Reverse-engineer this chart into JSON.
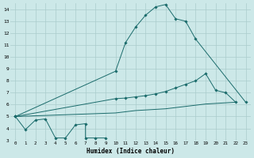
{
  "bg_color": "#cce8e8",
  "grid_color": "#aacccc",
  "line_color": "#1a6b6b",
  "xlabel": "Humidex (Indice chaleur)",
  "xlim": [
    -0.5,
    23.5
  ],
  "ylim": [
    3,
    14.5
  ],
  "yticks": [
    3,
    4,
    5,
    6,
    7,
    8,
    9,
    10,
    11,
    12,
    13,
    14
  ],
  "xticks": [
    0,
    1,
    2,
    3,
    4,
    5,
    6,
    7,
    8,
    9,
    10,
    11,
    12,
    13,
    14,
    15,
    16,
    17,
    18,
    19,
    20,
    21,
    22,
    23
  ],
  "curve1_x": [
    0,
    1,
    2,
    3,
    4,
    5,
    6,
    7,
    7,
    8,
    9
  ],
  "curve1_y": [
    5.0,
    3.9,
    4.7,
    4.8,
    3.2,
    3.2,
    4.3,
    4.4,
    3.2,
    3.2,
    3.2
  ],
  "curve2_x": [
    0,
    10,
    11,
    12,
    13,
    14,
    15,
    16,
    17,
    18,
    23
  ],
  "curve2_y": [
    5.0,
    8.8,
    11.2,
    12.5,
    13.5,
    14.2,
    14.4,
    13.2,
    13.0,
    11.5,
    6.2
  ],
  "curve3_x": [
    0,
    10,
    11,
    12,
    13,
    14,
    15,
    16,
    17,
    18,
    19,
    20,
    21,
    22
  ],
  "curve3_y": [
    5.0,
    6.5,
    6.55,
    6.65,
    6.75,
    6.9,
    7.1,
    7.4,
    7.7,
    8.0,
    8.6,
    7.2,
    7.0,
    6.2
  ],
  "curve4_x": [
    0,
    10,
    11,
    12,
    13,
    14,
    15,
    16,
    17,
    18,
    19,
    20,
    21,
    22
  ],
  "curve4_y": [
    5.0,
    5.3,
    5.4,
    5.5,
    5.55,
    5.6,
    5.65,
    5.75,
    5.85,
    5.95,
    6.05,
    6.1,
    6.15,
    6.2
  ]
}
